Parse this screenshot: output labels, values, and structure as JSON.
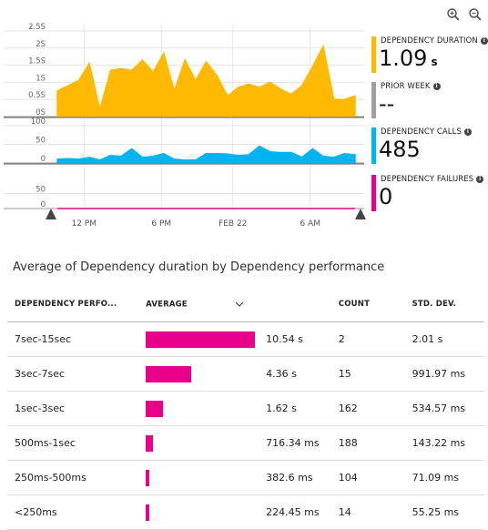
{
  "toolbar": {
    "zoom_in_icon": "zoom-in-icon",
    "zoom_out_icon": "zoom-out-icon"
  },
  "chart_data": [
    {
      "type": "area",
      "title": "",
      "ylabel": "",
      "yticks": [
        "0S",
        "0.5S",
        "1S",
        "1.5S",
        "2S",
        "2.5S"
      ],
      "ylim": [
        0,
        2.5
      ],
      "xticks": [
        "12 PM",
        "6 PM",
        "FEB 22",
        "6 AM"
      ],
      "series": [
        {
          "name": "Dependency duration",
          "color": "#ffb900",
          "values": [
            0.75,
            0.9,
            1.05,
            1.55,
            0.2,
            1.35,
            1.4,
            1.35,
            1.65,
            1.3,
            1.85,
            0.75,
            1.65,
            1.05,
            1.6,
            1.2,
            0.6,
            0.85,
            0.95,
            0.85,
            1.0,
            0.8,
            0.65,
            0.9,
            1.45,
            2.05,
            0.5,
            0.5,
            0.6
          ]
        }
      ],
      "grid": true
    },
    {
      "type": "area",
      "title": "",
      "yticks": [
        "0",
        "50",
        "100"
      ],
      "ylim": [
        0,
        100
      ],
      "series": [
        {
          "name": "Dependency calls",
          "color": "#00b4f0",
          "values": [
            10,
            12,
            10,
            15,
            8,
            20,
            18,
            38,
            15,
            18,
            25,
            10,
            8,
            8,
            25,
            25,
            24,
            20,
            22,
            45,
            30,
            28,
            28,
            15,
            38,
            18,
            15,
            25,
            22
          ]
        }
      ],
      "grid": true
    },
    {
      "type": "area",
      "title": "",
      "yticks": [
        "0",
        "50"
      ],
      "ylim": [
        0,
        100
      ],
      "series": [
        {
          "name": "Dependency failures",
          "color": "#e8008a",
          "values": [
            0,
            0,
            0,
            0,
            0,
            0,
            0,
            0,
            0,
            0,
            0,
            0,
            0,
            0,
            0,
            0,
            0,
            0,
            0,
            0,
            0,
            0,
            0,
            0,
            0,
            0,
            0,
            0,
            0
          ]
        }
      ],
      "grid": true
    }
  ],
  "metrics": [
    {
      "label": "DEPENDENCY DURATION",
      "value": "1.09",
      "unit": "s",
      "color": "#ffb900"
    },
    {
      "label": "PRIOR WEEK",
      "value": "--",
      "unit": "",
      "color": "#a0a0a0"
    },
    {
      "label": "DEPENDENCY CALLS",
      "value": "485",
      "unit": "",
      "color": "#00b4f0"
    },
    {
      "label": "DEPENDENCY FAILURES",
      "value": "0",
      "unit": "",
      "color": "#e8008a"
    }
  ],
  "grid_table": {
    "title": "Average of Dependency duration by Dependency performance",
    "headers": [
      "DEPENDENCY PERFO...",
      "AVERAGE",
      "",
      "COUNT",
      "STD. DEV."
    ],
    "max_average_seconds": 10.54,
    "bar_color": "#e8008a",
    "rows": [
      {
        "bucket": "7sec-15sec",
        "average": "10.54 s",
        "average_seconds": 10.54,
        "count": "2",
        "stddev": "2.01 s"
      },
      {
        "bucket": "3sec-7sec",
        "average": "4.36 s",
        "average_seconds": 4.36,
        "count": "15",
        "stddev": "991.97 ms"
      },
      {
        "bucket": "1sec-3sec",
        "average": "1.62 s",
        "average_seconds": 1.62,
        "count": "162",
        "stddev": "534.57 ms"
      },
      {
        "bucket": "500ms-1sec",
        "average": "716.34 ms",
        "average_seconds": 0.71634,
        "count": "188",
        "stddev": "143.22 ms"
      },
      {
        "bucket": "250ms-500ms",
        "average": "382.6 ms",
        "average_seconds": 0.3826,
        "count": "104",
        "stddev": "71.09 ms"
      },
      {
        "bucket": "<250ms",
        "average": "224.45 ms",
        "average_seconds": 0.22445,
        "count": "14",
        "stddev": "55.25 ms"
      }
    ]
  }
}
